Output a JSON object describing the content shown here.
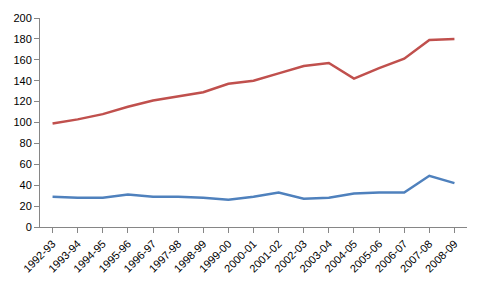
{
  "chart_data": {
    "type": "line",
    "categories": [
      "1992-93",
      "1993-94",
      "1994-95",
      "1995-96",
      "1996-97",
      "1997-98",
      "1998-99",
      "1999-00",
      "2000-01",
      "2001-02",
      "2002-03",
      "2003-04",
      "2004-05",
      "2005-06",
      "2006-07",
      "2007-08",
      "2008-09"
    ],
    "series": [
      {
        "color": "#c0504d",
        "values": [
          99,
          103,
          108,
          115,
          121,
          125,
          129,
          137,
          140,
          147,
          154,
          157,
          142,
          152,
          161,
          179,
          180
        ]
      },
      {
        "color": "#4f81bd",
        "values": [
          29,
          28,
          28,
          31,
          29,
          29,
          28,
          26,
          29,
          33,
          27,
          28,
          32,
          33,
          33,
          49,
          42
        ]
      }
    ],
    "ylim": [
      0,
      200
    ],
    "yticks": [
      0,
      20,
      40,
      60,
      80,
      100,
      120,
      140,
      160,
      180,
      200
    ],
    "grid": false
  }
}
